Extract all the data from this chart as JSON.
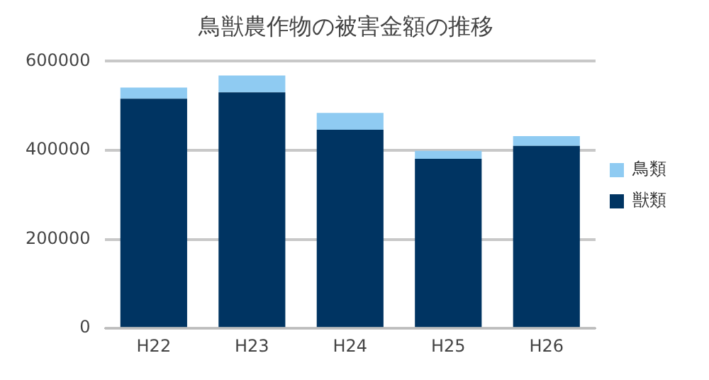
{
  "chart_data": {
    "type": "bar",
    "title": "鳥獣農作物の被害金額の推移",
    "categories": [
      "H22",
      "H23",
      "H24",
      "H25",
      "H26"
    ],
    "stacked": true,
    "series": [
      {
        "name": "獣類",
        "color": "#003462",
        "values": [
          516000,
          530000,
          446000,
          381000,
          410000
        ]
      },
      {
        "name": "鳥類",
        "color": "#8fcbf2",
        "values": [
          25000,
          38000,
          38000,
          18000,
          22000
        ]
      }
    ],
    "ylim": [
      0,
      600000
    ],
    "yticks": [
      0,
      200000,
      400000,
      600000
    ],
    "grid": "y",
    "legend": "right"
  }
}
